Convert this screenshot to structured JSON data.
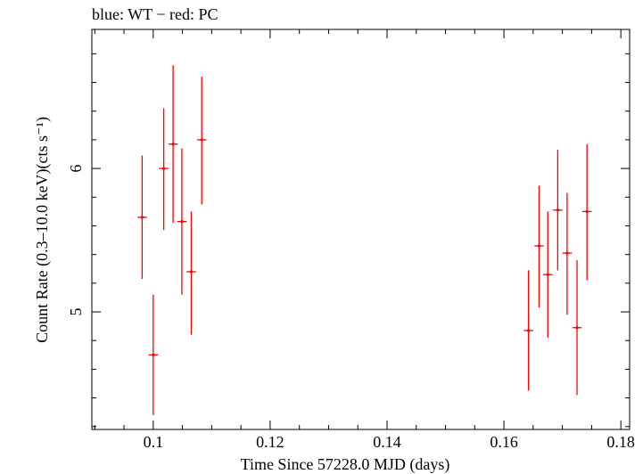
{
  "chart_data": {
    "type": "scatter",
    "title": "blue: WT − red: PC",
    "xlabel": "Time Since 57228.0 MJD (days)",
    "ylabel": "Count Rate (0.3–10.0 keV)(cts s⁻¹)",
    "xlim": [
      0.0895,
      0.1815
    ],
    "ylim": [
      4.18,
      6.97
    ],
    "x_ticks": [
      0.1,
      0.12,
      0.14,
      0.16,
      0.18
    ],
    "x_tick_labels": [
      "0.1",
      "0.12",
      "0.14",
      "0.16",
      "0.18"
    ],
    "y_ticks": [
      5,
      6
    ],
    "y_tick_labels": [
      "5",
      "6"
    ],
    "grid": false,
    "series": [
      {
        "color": "#ff0000",
        "points": [
          {
            "x": 0.0981,
            "y": 5.66,
            "xerr": 0.0008,
            "ylo": 5.23,
            "yhi": 6.09
          },
          {
            "x": 0.1,
            "y": 4.7,
            "xerr": 0.0008,
            "ylo": 4.28,
            "yhi": 5.12
          },
          {
            "x": 0.1018,
            "y": 6.0,
            "xerr": 0.0008,
            "ylo": 5.57,
            "yhi": 6.42
          },
          {
            "x": 0.1034,
            "y": 6.17,
            "xerr": 0.0008,
            "ylo": 5.62,
            "yhi": 6.72
          },
          {
            "x": 0.1049,
            "y": 5.63,
            "xerr": 0.0008,
            "ylo": 5.12,
            "yhi": 6.14
          },
          {
            "x": 0.1065,
            "y": 5.28,
            "xerr": 0.0008,
            "ylo": 4.84,
            "yhi": 5.7
          },
          {
            "x": 0.1083,
            "y": 6.2,
            "xerr": 0.0008,
            "ylo": 5.75,
            "yhi": 6.64
          },
          {
            "x": 0.1642,
            "y": 4.87,
            "xerr": 0.0008,
            "ylo": 4.45,
            "yhi": 5.29
          },
          {
            "x": 0.166,
            "y": 5.46,
            "xerr": 0.0008,
            "ylo": 5.03,
            "yhi": 5.88
          },
          {
            "x": 0.1675,
            "y": 5.26,
            "xerr": 0.0008,
            "ylo": 4.82,
            "yhi": 5.7
          },
          {
            "x": 0.1692,
            "y": 5.71,
            "xerr": 0.0008,
            "ylo": 5.29,
            "yhi": 6.13
          },
          {
            "x": 0.1708,
            "y": 5.41,
            "xerr": 0.0008,
            "ylo": 4.98,
            "yhi": 5.83
          },
          {
            "x": 0.1725,
            "y": 4.89,
            "xerr": 0.0008,
            "ylo": 4.42,
            "yhi": 5.36
          },
          {
            "x": 0.1742,
            "y": 5.7,
            "xerr": 0.0008,
            "ylo": 5.22,
            "yhi": 6.17
          }
        ]
      }
    ]
  }
}
